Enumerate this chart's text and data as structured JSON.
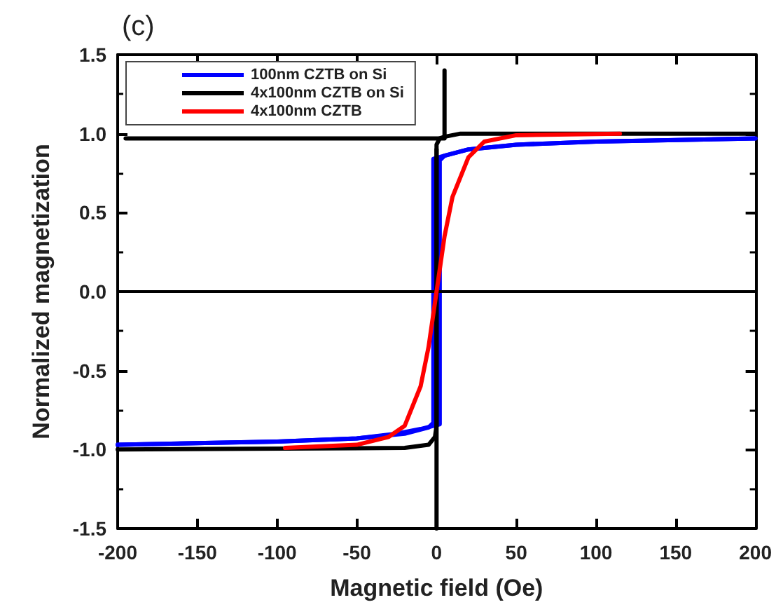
{
  "chart_data": {
    "type": "line",
    "title": "(c)",
    "xlabel": "Magnetic field (Oe)",
    "ylabel": "Normalized magnetization",
    "xlim": [
      -200,
      200
    ],
    "xticks": [
      -200,
      -150,
      -100,
      -50,
      0,
      50,
      100,
      150,
      200
    ],
    "ylim": [
      -1.5,
      1.5
    ],
    "yticks": [
      -1.5,
      {
        "value": -1,
        "label": "-1.0"
      },
      -0.5,
      {
        "value": 0,
        "label": "0.0"
      },
      0.5,
      {
        "value": 1,
        "label": "1.0"
      },
      1.5
    ],
    "grid": false,
    "legend": "top left",
    "marker": "none",
    "line_style": "solid",
    "ref_lines": [
      {
        "axis": "y",
        "value": 0,
        "color": "#000000"
      }
    ],
    "series": [
      {
        "name": "100nm CZTB on Si",
        "color": "#0000ff",
        "x": [
          -200,
          -100,
          -50,
          -25,
          -10,
          2,
          2,
          5,
          20,
          50,
          100,
          200
        ],
        "values": [
          -0.97,
          -0.95,
          -0.93,
          -0.9,
          -0.87,
          -0.84,
          0.83,
          0.86,
          0.9,
          0.93,
          0.95,
          0.97
        ]
      },
      {
        "color": "#0000ff",
        "x": [
          -200,
          -100,
          -50,
          -20,
          -5,
          -2,
          -2,
          5,
          20,
          50,
          100,
          200
        ],
        "values": [
          -0.97,
          -0.95,
          -0.93,
          -0.9,
          -0.86,
          -0.83,
          0.84,
          0.86,
          0.9,
          0.93,
          0.95,
          0.97
        ]
      },
      {
        "name": "4x100nm CZTB on Si",
        "color": "#000000",
        "x": [
          -200,
          -20,
          -5,
          -1,
          0,
          0,
          2,
          5,
          15,
          200
        ],
        "values": [
          -1.0,
          -0.99,
          -0.97,
          -0.92,
          -0.85,
          0.93,
          0.97,
          0.98,
          1.0,
          1.0
        ]
      },
      {
        "color": "#000000",
        "x": [
          0,
          0
        ],
        "values": [
          -1.5,
          0.9
        ]
      },
      {
        "color": "#000000",
        "x": [
          5,
          5,
          -195
        ],
        "values": [
          1.4,
          0.97,
          0.97
        ]
      },
      {
        "name": "4x100nm CZTB",
        "color": "#ff0000",
        "x": [
          -95,
          -50,
          -30,
          -20,
          -10,
          -5,
          0,
          5,
          10,
          20,
          30,
          50,
          115
        ],
        "values": [
          -0.99,
          -0.97,
          -0.92,
          -0.85,
          -0.6,
          -0.35,
          0.0,
          0.35,
          0.6,
          0.85,
          0.95,
          0.99,
          1.0
        ]
      }
    ]
  }
}
